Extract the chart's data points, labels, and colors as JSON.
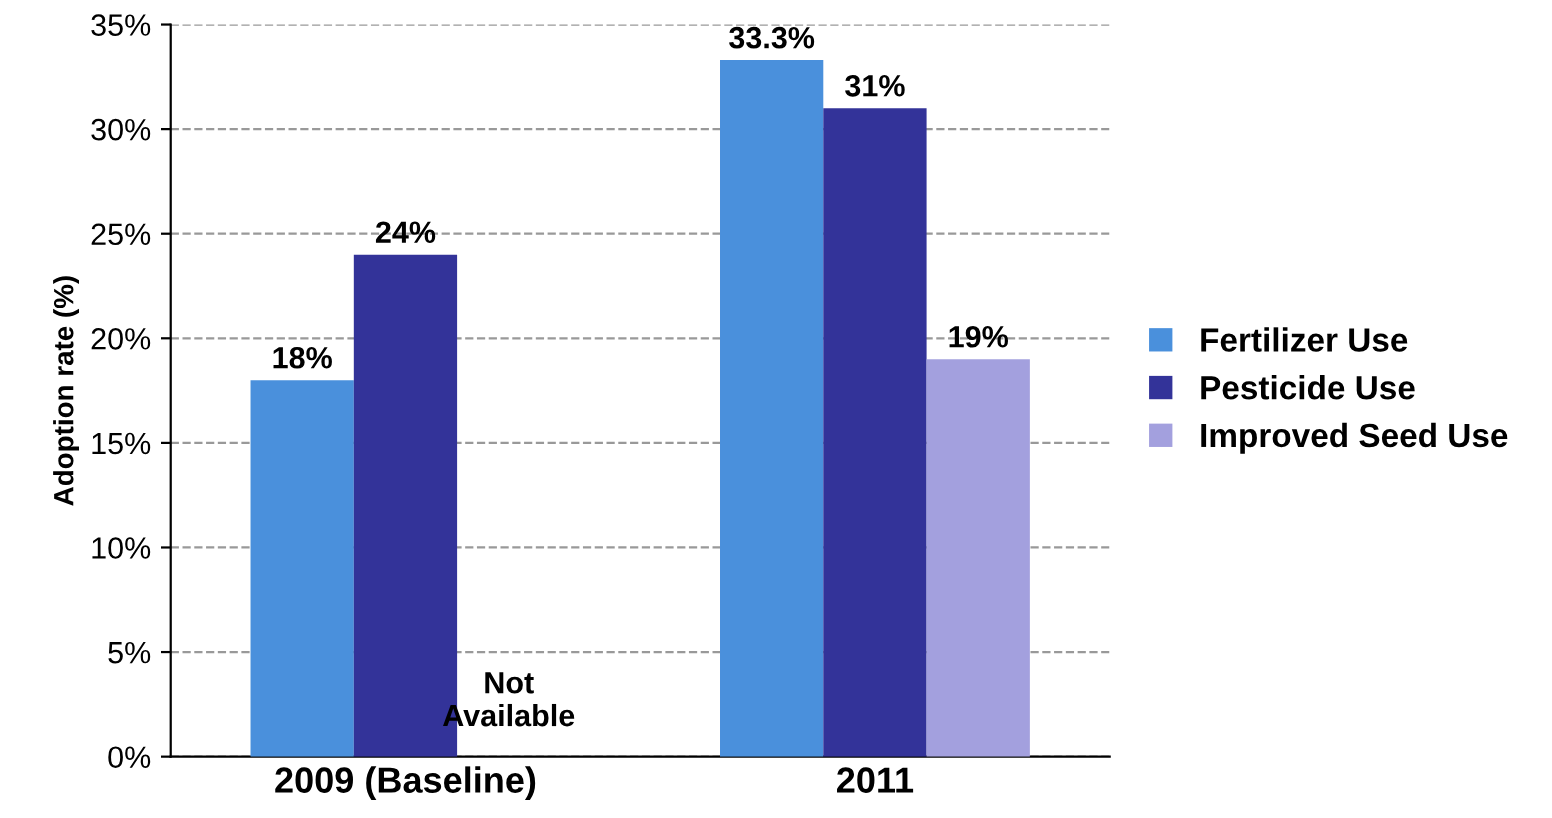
{
  "chart_data": {
    "type": "bar",
    "categories": [
      "2009 (Baseline)",
      "2011"
    ],
    "series": [
      {
        "name": "Fertilizer Use",
        "color": "#4a90dc",
        "values": [
          18,
          33.3
        ],
        "value_labels": [
          "18%",
          "33.3%"
        ]
      },
      {
        "name": "Pesticide Use",
        "color": "#333399",
        "values": [
          24,
          31
        ],
        "value_labels": [
          "24%",
          "31%"
        ]
      },
      {
        "name": "Improved Seed Use",
        "color": "#a3a0de",
        "values": [
          null,
          19
        ],
        "value_labels": [
          null,
          "19%"
        ]
      }
    ],
    "ylabel": "Adoption rate (%)",
    "ylim": [
      0,
      35
    ],
    "yticks": [
      {
        "value": 0,
        "label": "0%"
      },
      {
        "value": 5,
        "label": "5%"
      },
      {
        "value": 10,
        "label": "10%"
      },
      {
        "value": 15,
        "label": "15%"
      },
      {
        "value": 20,
        "label": "20%"
      },
      {
        "value": 25,
        "label": "25%"
      },
      {
        "value": 30,
        "label": "30%"
      },
      {
        "value": 35,
        "label": "35%"
      }
    ],
    "annotations": [
      "Not\nAvailable"
    ],
    "grid": "y",
    "legend": "right"
  }
}
